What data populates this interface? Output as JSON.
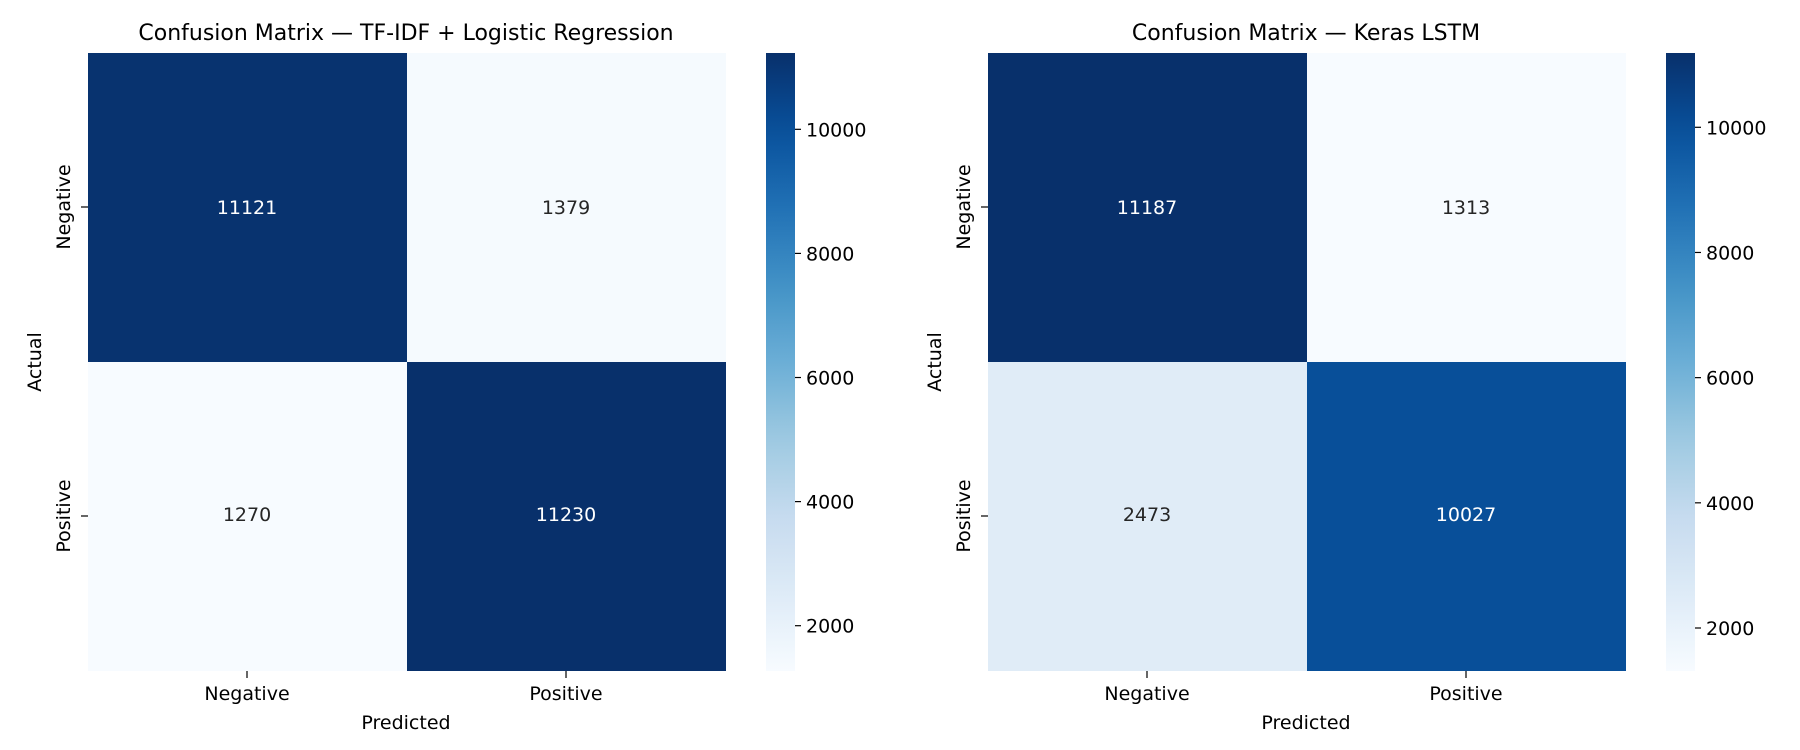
{
  "chart_data": [
    {
      "type": "heatmap",
      "title": "Confusion Matrix — TF-IDF + Logistic Regression",
      "xlabel": "Predicted",
      "ylabel": "Actual",
      "x_categories": [
        "Negative",
        "Positive"
      ],
      "y_categories": [
        "Negative",
        "Positive"
      ],
      "values": [
        [
          11121,
          1379
        ],
        [
          1270,
          11230
        ]
      ],
      "colormap": "Blues",
      "colorbar": {
        "min": 1270,
        "max": 11230,
        "ticks": [
          2000,
          4000,
          6000,
          8000,
          10000
        ]
      }
    },
    {
      "type": "heatmap",
      "title": "Confusion Matrix — Keras LSTM",
      "xlabel": "Predicted",
      "ylabel": "Actual",
      "x_categories": [
        "Negative",
        "Positive"
      ],
      "y_categories": [
        "Negative",
        "Positive"
      ],
      "values": [
        [
          11187,
          1313
        ],
        [
          2473,
          10027
        ]
      ],
      "colormap": "Blues",
      "colorbar": {
        "min": 1313,
        "max": 11187,
        "ticks": [
          2000,
          4000,
          6000,
          8000,
          10000
        ]
      }
    }
  ]
}
